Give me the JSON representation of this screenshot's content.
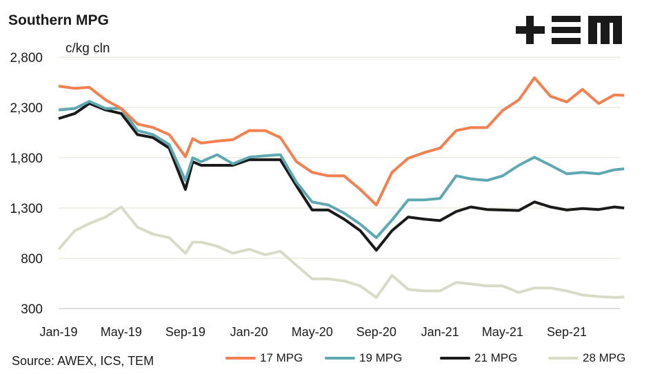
{
  "title": "Southern MPG",
  "unit_label": "c/kg cln",
  "source": "Source: AWEX, ICS, TEM",
  "logo_text": "TEM",
  "chart_data": {
    "type": "line",
    "title": "Southern MPG",
    "ylabel": "c/kg cln",
    "xlabel": "",
    "ylim": [
      300,
      2800
    ],
    "yticks": [
      300,
      800,
      1300,
      1800,
      2300,
      2800
    ],
    "ytick_labels": [
      "300",
      "800",
      "1,300",
      "1,800",
      "2,300",
      "2,800"
    ],
    "xlim": [
      "2019-01-01",
      "2021-12-20"
    ],
    "xticks": [
      "2019-01-01",
      "2019-05-01",
      "2019-09-01",
      "2020-01-01",
      "2020-05-01",
      "2020-09-01",
      "2021-01-01",
      "2021-05-01",
      "2021-09-01"
    ],
    "xtick_labels": [
      "Jan-19",
      "May-19",
      "Sep-19",
      "Jan-20",
      "May-20",
      "Sep-20",
      "Jan-21",
      "May-21",
      "Sep-21"
    ],
    "grid": "horizontal",
    "legend": "bottom",
    "x": [
      "2019-01-01",
      "2019-02-01",
      "2019-03-01",
      "2019-04-01",
      "2019-05-01",
      "2019-06-01",
      "2019-07-01",
      "2019-08-01",
      "2019-09-01",
      "2019-09-15",
      "2019-10-01",
      "2019-11-01",
      "2019-12-01",
      "2020-01-01",
      "2020-02-01",
      "2020-03-01",
      "2020-04-01",
      "2020-05-01",
      "2020-06-01",
      "2020-07-01",
      "2020-08-01",
      "2020-09-01",
      "2020-10-01",
      "2020-11-01",
      "2020-12-01",
      "2021-01-01",
      "2021-02-01",
      "2021-03-01",
      "2021-04-01",
      "2021-05-01",
      "2021-06-01",
      "2021-07-01",
      "2021-08-01",
      "2021-09-01",
      "2021-10-01",
      "2021-11-01",
      "2021-12-01",
      "2021-12-20"
    ],
    "series": [
      {
        "name": "17 MPG",
        "color": "#f47f4f",
        "values": [
          2512,
          2490,
          2500,
          2375,
          2290,
          2135,
          2100,
          2030,
          1810,
          1990,
          1945,
          1965,
          1980,
          2070,
          2070,
          2000,
          1760,
          1655,
          1620,
          1620,
          1485,
          1330,
          1655,
          1795,
          1850,
          1895,
          2070,
          2100,
          2100,
          2270,
          2375,
          2595,
          2410,
          2355,
          2480,
          2340,
          2425,
          2420
        ]
      },
      {
        "name": "19 MPG",
        "color": "#5ea8b1",
        "values": [
          2275,
          2290,
          2360,
          2290,
          2290,
          2070,
          2030,
          1930,
          1575,
          1800,
          1760,
          1830,
          1740,
          1805,
          1820,
          1830,
          1555,
          1360,
          1330,
          1250,
          1140,
          1005,
          1180,
          1380,
          1380,
          1395,
          1620,
          1590,
          1575,
          1620,
          1725,
          1805,
          1725,
          1640,
          1655,
          1640,
          1680,
          1690
        ]
      },
      {
        "name": "21 MPG",
        "color": "#1a1a1a",
        "values": [
          2190,
          2240,
          2340,
          2275,
          2240,
          2030,
          2000,
          1895,
          1485,
          1760,
          1725,
          1725,
          1725,
          1780,
          1780,
          1780,
          1520,
          1280,
          1280,
          1190,
          1075,
          880,
          1075,
          1210,
          1190,
          1175,
          1265,
          1310,
          1285,
          1280,
          1275,
          1360,
          1310,
          1280,
          1295,
          1285,
          1310,
          1300
        ]
      },
      {
        "name": "28 MPG",
        "color": "#d9dbc6",
        "values": [
          890,
          1075,
          1145,
          1210,
          1310,
          1110,
          1040,
          1005,
          850,
          960,
          960,
          920,
          850,
          890,
          835,
          870,
          730,
          595,
          595,
          575,
          525,
          410,
          630,
          490,
          475,
          475,
          560,
          545,
          525,
          525,
          460,
          505,
          505,
          475,
          435,
          420,
          410,
          415
        ]
      }
    ]
  }
}
